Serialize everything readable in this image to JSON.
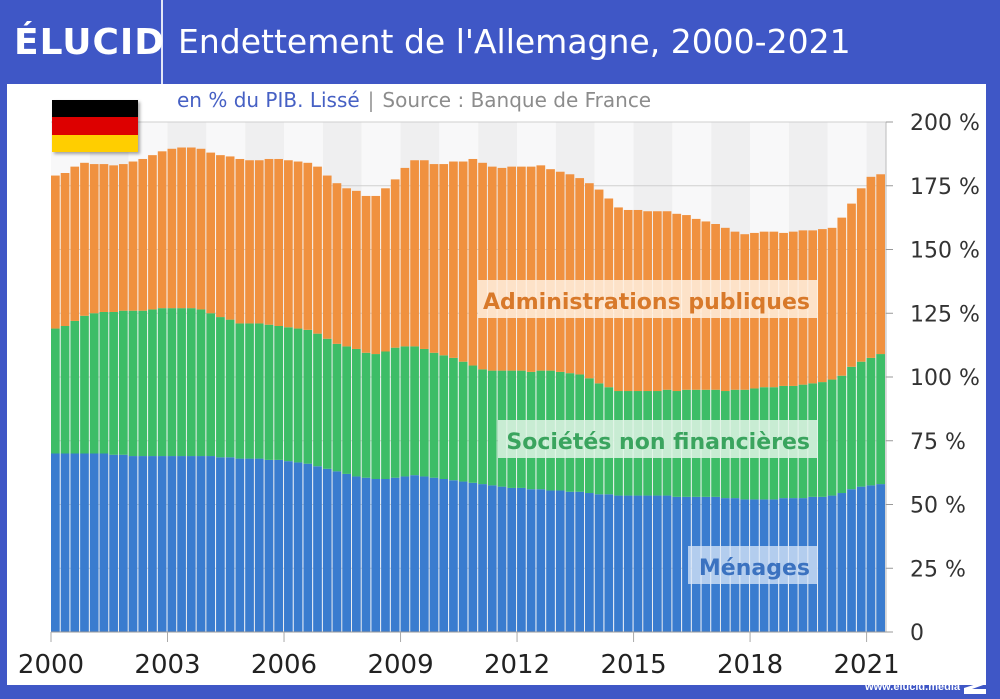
{
  "brand": {
    "logo": "ÉLUCID",
    "footer_url": "www.elucid.media"
  },
  "header": {
    "title": "Endettement de l'Allemagne, 2000-2021"
  },
  "subtitle": {
    "unit": "en % du PIB. Lissé",
    "separator": "|",
    "source": "Source : Banque de France"
  },
  "flag": {
    "country": "Germany",
    "colors": [
      "#000000",
      "#dd0000",
      "#ffce00"
    ]
  },
  "colors": {
    "frame": "#3f57c6",
    "menages": "#3a7ccf",
    "snf": "#3dbd67",
    "apu": "#f0913f",
    "band_dark": "#efeff0",
    "band_light": "#f8f8f9"
  },
  "chart_data": {
    "type": "bar",
    "stacked": true,
    "title": "Endettement de l'Allemagne, 2000-2021",
    "subtitle": "en % du PIB. Lissé | Source : Banque de France",
    "frequency": "quarterly",
    "x_start": "2000Q1",
    "x_end": "2021Q2",
    "xlabel": "",
    "ylabel": "",
    "ylim": [
      0,
      200
    ],
    "yticks": [
      0,
      25,
      50,
      75,
      100,
      125,
      150,
      175,
      200
    ],
    "ytick_labels": [
      "0",
      "25 %",
      "50 %",
      "75 %",
      "100 %",
      "125 %",
      "150 %",
      "175 %",
      "200 %"
    ],
    "xticks": [
      "2000",
      "2003",
      "2006",
      "2009",
      "2012",
      "2015",
      "2018",
      "2021"
    ],
    "yaxis_side": "right",
    "grid": true,
    "series": [
      {
        "name": "Ménages",
        "label_key": "menages",
        "values": [
          70,
          70,
          70,
          70,
          70,
          70,
          69.5,
          69.5,
          69,
          69,
          69,
          69,
          69,
          69,
          69,
          69,
          69,
          68.5,
          68.5,
          68,
          68,
          68,
          67.5,
          67.5,
          67,
          66.5,
          66,
          65,
          64,
          63,
          62,
          61,
          60.5,
          60,
          60,
          60.5,
          61,
          61.5,
          61,
          60.5,
          60,
          59.5,
          59,
          58.5,
          58,
          57.5,
          57,
          56.5,
          56.5,
          56,
          56,
          55.5,
          55.5,
          55,
          55,
          54.5,
          54,
          54,
          53.5,
          53.5,
          53.5,
          53.5,
          53.5,
          53.5,
          53,
          53,
          53,
          53,
          53,
          52.5,
          52.5,
          52,
          52,
          52,
          52,
          52.5,
          52.5,
          52.5,
          53,
          53,
          53.5,
          54.5,
          56,
          57,
          57.5,
          58
        ]
      },
      {
        "name": "Sociétés non financières",
        "label_key": "snf",
        "values": [
          49,
          50,
          52,
          54,
          55,
          55.5,
          56,
          56.5,
          57,
          57,
          57.5,
          58,
          58,
          58,
          58,
          57.5,
          56,
          55,
          54,
          53,
          53,
          53,
          53,
          52.5,
          52.5,
          52.5,
          52.5,
          52,
          51,
          50,
          50,
          50,
          49,
          49,
          50,
          51,
          51,
          50.5,
          50,
          49,
          48.5,
          48,
          47,
          46,
          45,
          45,
          45.5,
          46,
          46,
          46,
          46.5,
          47,
          46.5,
          46.5,
          46,
          45,
          43.5,
          42,
          41,
          41,
          41,
          41,
          41,
          41.5,
          41.5,
          42,
          42,
          42,
          42,
          42,
          42.5,
          43,
          43.5,
          44,
          44,
          44,
          44,
          44.5,
          44.5,
          45,
          45.5,
          46,
          48,
          49,
          50,
          51
        ]
      },
      {
        "name": "Administrations publiques",
        "label_key": "apu",
        "values": [
          60,
          60,
          60.5,
          60,
          58.5,
          58,
          57.5,
          57.5,
          58.5,
          59.5,
          60.5,
          61.5,
          62.5,
          63,
          63,
          63,
          63,
          63.5,
          64,
          64.5,
          64,
          64,
          65,
          65.5,
          65.5,
          65.5,
          65.5,
          65.5,
          64,
          63,
          62,
          62,
          61.5,
          62,
          64,
          66,
          70,
          73,
          74,
          74,
          75,
          77,
          78.5,
          81,
          81,
          80,
          79.5,
          80,
          80,
          80.5,
          80.5,
          79,
          78.5,
          78,
          77,
          76.5,
          76,
          74,
          72,
          71,
          71,
          70.5,
          70.5,
          70,
          69.5,
          68.5,
          67,
          66,
          65,
          64,
          62,
          61,
          61,
          61,
          61,
          60,
          60.5,
          60.5,
          60,
          60,
          59.5,
          62,
          64,
          68,
          71,
          70.5
        ]
      }
    ],
    "series_labels": {
      "apu": "Administrations publiques",
      "snf": "Sociétés non financières",
      "menages": "Ménages"
    },
    "totals_approx": {
      "2000Q1": 179,
      "2003Q4": 190,
      "2008Q3": 174,
      "2010Q4": 185,
      "2018Q3": 158,
      "2021Q2": 179
    }
  }
}
